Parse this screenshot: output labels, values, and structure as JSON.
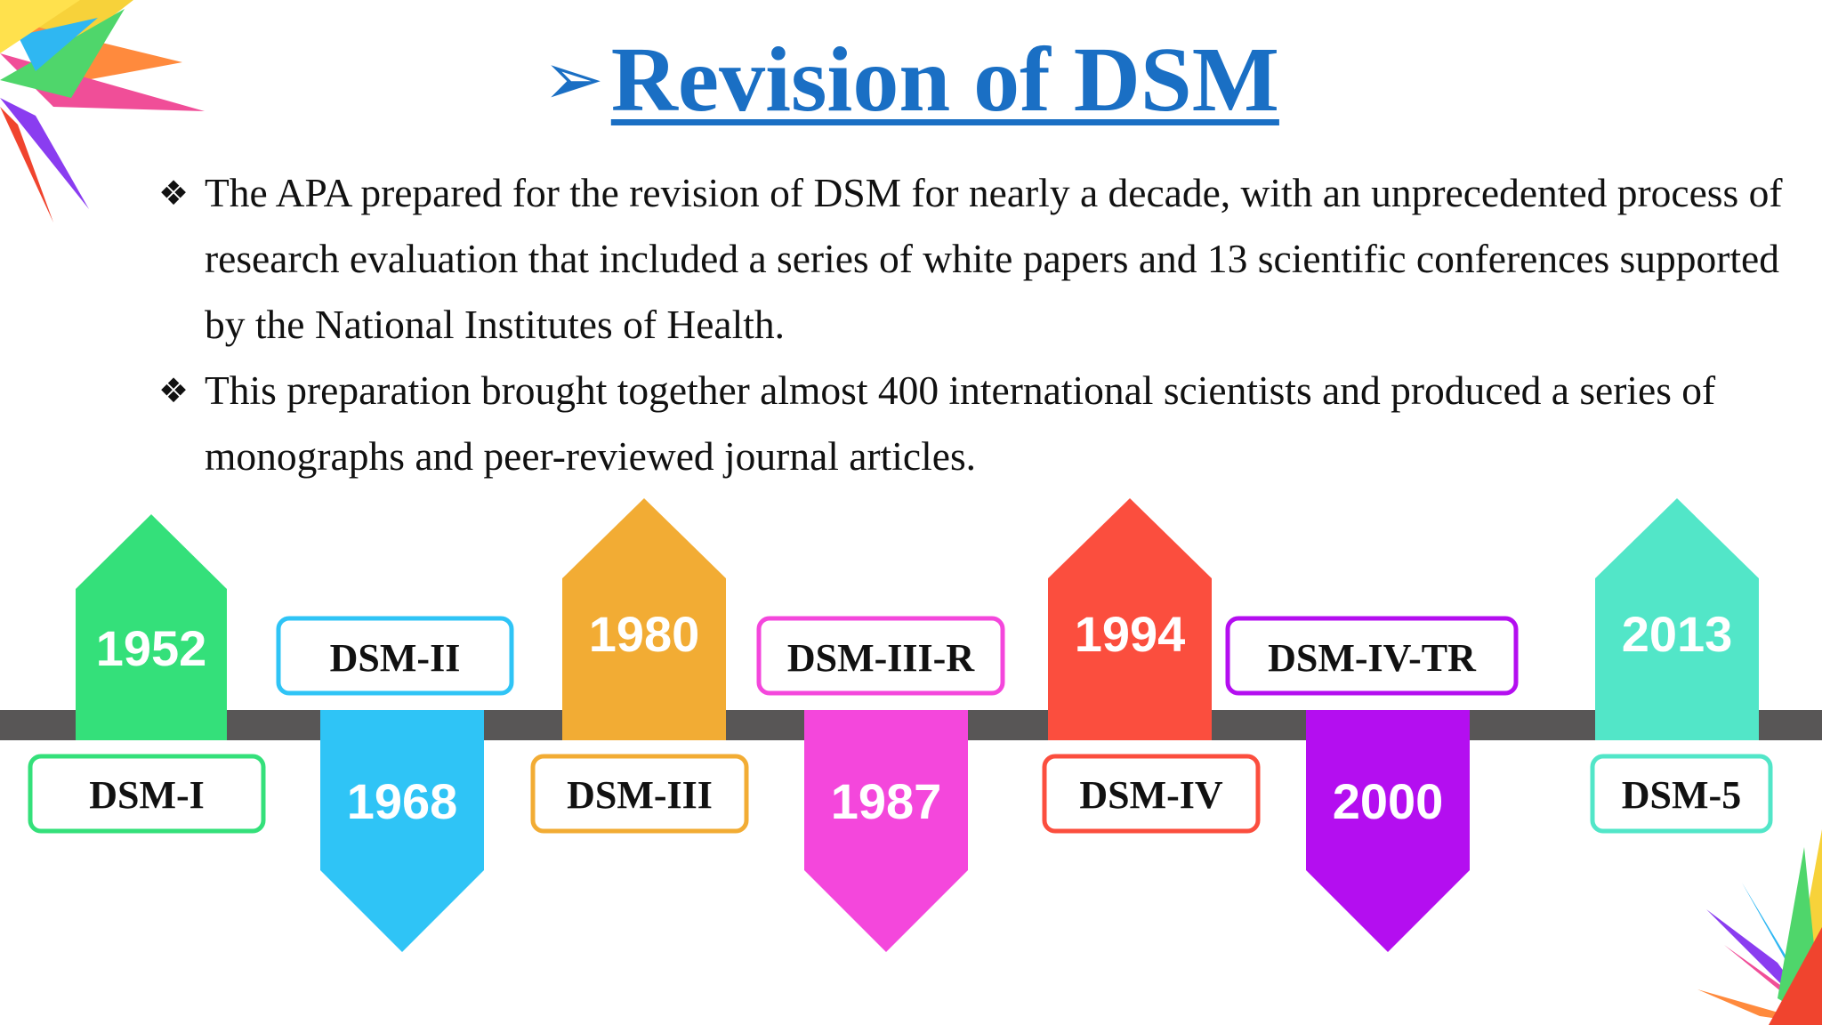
{
  "title": {
    "arrow_glyph": "➢",
    "text": "Revision of DSM",
    "color": "#1a6fc4"
  },
  "bullets": [
    {
      "mark": "❖",
      "text": "The APA prepared for the revision of DSM for nearly a decade, with an unprecedented process of research evaluation that included a series of white papers and 13 scientific conferences supported by the National  Institutes of Health."
    },
    {
      "mark": "❖",
      "text": "This preparation brought together almost 400 international scientists and produced a series of monographs and peer-reviewed journal articles."
    }
  ],
  "timeline": {
    "line_color": "#585656",
    "milestones": [
      {
        "year": "1952",
        "edition": "DSM-I",
        "color": "#34e07a",
        "direction": "up"
      },
      {
        "year": "1968",
        "edition": "DSM-II",
        "color": "#2fc4f6",
        "direction": "down"
      },
      {
        "year": "1980",
        "edition": "DSM-III",
        "color": "#f2ac34",
        "direction": "up"
      },
      {
        "year": "1987",
        "edition": "DSM-III-R",
        "color": "#f447dc",
        "direction": "down"
      },
      {
        "year": "1994",
        "edition": "DSM-IV",
        "color": "#fb4e3e",
        "direction": "up"
      },
      {
        "year": "2000",
        "edition": "DSM-IV-TR",
        "color": "#b40ef0",
        "direction": "down"
      },
      {
        "year": "2013",
        "edition": "DSM-5",
        "color": "#52e6c8",
        "direction": "up"
      }
    ]
  }
}
